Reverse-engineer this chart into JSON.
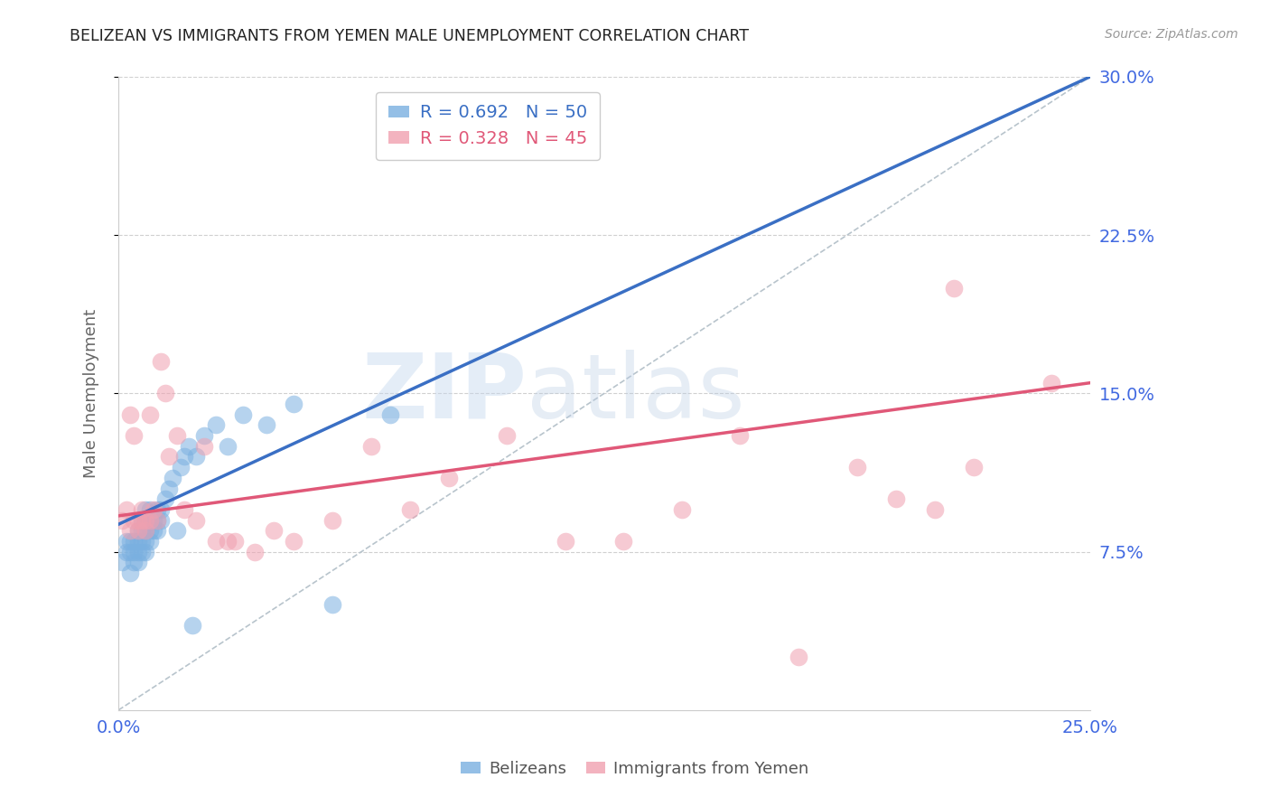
{
  "title": "BELIZEAN VS IMMIGRANTS FROM YEMEN MALE UNEMPLOYMENT CORRELATION CHART",
  "source": "Source: ZipAtlas.com",
  "ylabel": "Male Unemployment",
  "xlim": [
    0.0,
    0.25
  ],
  "ylim": [
    0.0,
    0.3
  ],
  "yticks": [
    0.075,
    0.15,
    0.225,
    0.3
  ],
  "ytick_labels": [
    "7.5%",
    "15.0%",
    "22.5%",
    "30.0%"
  ],
  "xticks": [
    0.0,
    0.05,
    0.1,
    0.15,
    0.2,
    0.25
  ],
  "xtick_labels": [
    "0.0%",
    "",
    "",
    "",
    "",
    "25.0%"
  ],
  "belizean_color": "#7ab0e0",
  "yemen_color": "#f0a0b0",
  "belizean_line_color": "#3a6fc4",
  "yemen_line_color": "#e05878",
  "dashed_line_color": "#b8c4cc",
  "R_belizean": 0.692,
  "N_belizean": 50,
  "R_yemen": 0.328,
  "N_yemen": 45,
  "watermark_zip": "ZIP",
  "watermark_atlas": "atlas",
  "background_color": "#ffffff",
  "title_color": "#222222",
  "axis_label_color": "#666666",
  "tick_label_color": "#4169e1",
  "belizean_x": [
    0.001,
    0.002,
    0.002,
    0.003,
    0.003,
    0.003,
    0.004,
    0.004,
    0.004,
    0.005,
    0.005,
    0.005,
    0.005,
    0.006,
    0.006,
    0.006,
    0.006,
    0.007,
    0.007,
    0.007,
    0.007,
    0.007,
    0.008,
    0.008,
    0.008,
    0.008,
    0.009,
    0.009,
    0.01,
    0.01,
    0.01,
    0.011,
    0.011,
    0.012,
    0.013,
    0.014,
    0.015,
    0.016,
    0.017,
    0.018,
    0.019,
    0.02,
    0.022,
    0.025,
    0.028,
    0.032,
    0.038,
    0.045,
    0.055,
    0.07
  ],
  "belizean_y": [
    0.07,
    0.075,
    0.08,
    0.065,
    0.075,
    0.08,
    0.07,
    0.075,
    0.08,
    0.07,
    0.075,
    0.08,
    0.085,
    0.075,
    0.08,
    0.085,
    0.09,
    0.075,
    0.08,
    0.085,
    0.09,
    0.095,
    0.08,
    0.085,
    0.09,
    0.095,
    0.085,
    0.09,
    0.085,
    0.09,
    0.095,
    0.09,
    0.095,
    0.1,
    0.105,
    0.11,
    0.085,
    0.115,
    0.12,
    0.125,
    0.04,
    0.12,
    0.13,
    0.135,
    0.125,
    0.14,
    0.135,
    0.145,
    0.05,
    0.14
  ],
  "yemen_x": [
    0.001,
    0.002,
    0.003,
    0.003,
    0.004,
    0.004,
    0.005,
    0.005,
    0.006,
    0.006,
    0.007,
    0.007,
    0.008,
    0.008,
    0.009,
    0.01,
    0.011,
    0.012,
    0.013,
    0.015,
    0.017,
    0.02,
    0.022,
    0.025,
    0.028,
    0.03,
    0.035,
    0.04,
    0.045,
    0.055,
    0.065,
    0.075,
    0.085,
    0.1,
    0.115,
    0.13,
    0.145,
    0.16,
    0.175,
    0.19,
    0.2,
    0.21,
    0.215,
    0.22,
    0.24
  ],
  "yemen_y": [
    0.09,
    0.095,
    0.085,
    0.14,
    0.09,
    0.13,
    0.085,
    0.09,
    0.09,
    0.095,
    0.085,
    0.09,
    0.09,
    0.14,
    0.095,
    0.09,
    0.165,
    0.15,
    0.12,
    0.13,
    0.095,
    0.09,
    0.125,
    0.08,
    0.08,
    0.08,
    0.075,
    0.085,
    0.08,
    0.09,
    0.125,
    0.095,
    0.11,
    0.13,
    0.08,
    0.08,
    0.095,
    0.13,
    0.025,
    0.115,
    0.1,
    0.095,
    0.2,
    0.115,
    0.155
  ],
  "belizean_line_x": [
    0.0,
    0.25
  ],
  "belizean_line_y": [
    0.088,
    0.3
  ],
  "yemen_line_x": [
    0.0,
    0.25
  ],
  "yemen_line_y": [
    0.092,
    0.155
  ],
  "diag_line_x": [
    0.0,
    0.25
  ],
  "diag_line_y": [
    0.0,
    0.3
  ]
}
